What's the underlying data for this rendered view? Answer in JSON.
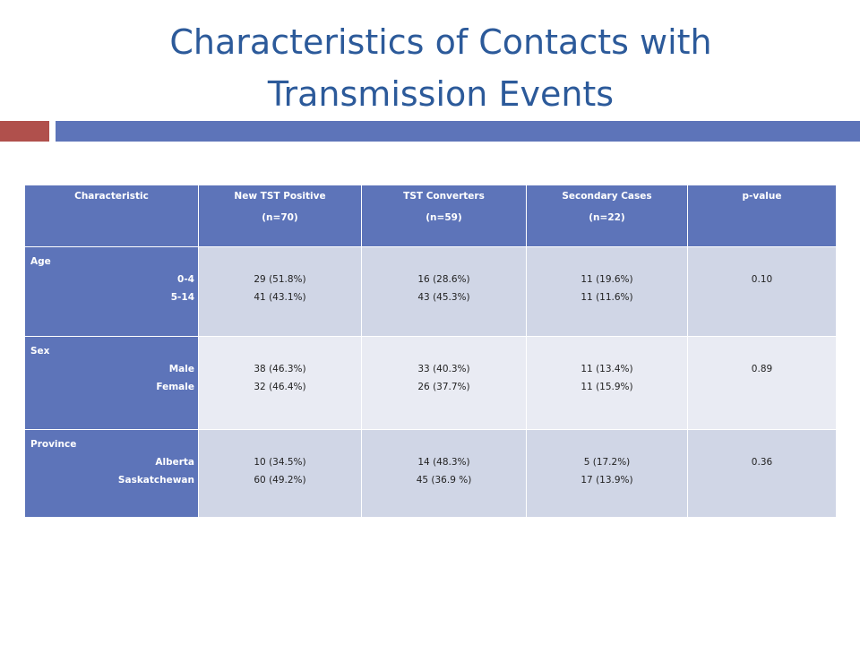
{
  "slide": {
    "title_line1": "Characteristics of Contacts with",
    "title_line2": "Transmission Events"
  },
  "table": {
    "headers": [
      {
        "line1": "Characteristic",
        "line2": ""
      },
      {
        "line1": "New TST Positive",
        "line2": "(n=70)"
      },
      {
        "line1": "TST Converters",
        "line2": "(n=59)"
      },
      {
        "line1": "Secondary Cases",
        "line2": "(n=22)"
      },
      {
        "line1": "p-value",
        "line2": ""
      }
    ],
    "rows": [
      {
        "group": "Age",
        "subs": [
          "0-4",
          "5-14",
          ""
        ],
        "new_tst": [
          "29 (51.8%)",
          "41 (43.1%)"
        ],
        "tst_conv": [
          "16 (28.6%)",
          "43 (45.3%)"
        ],
        "secondary": [
          "11 (19.6%)",
          "11 (11.6%)"
        ],
        "p_value": "0.10"
      },
      {
        "group": "Sex",
        "subs": [
          "Male",
          "Female",
          ""
        ],
        "new_tst": [
          "38 (46.3%)",
          "32 (46.4%)"
        ],
        "tst_conv": [
          "33 (40.3%)",
          "26 (37.7%)"
        ],
        "secondary": [
          "11 (13.4%)",
          "11 (15.9%)"
        ],
        "p_value": "0.89"
      },
      {
        "group": "Province",
        "subs": [
          "Alberta",
          "Saskatchewan",
          ""
        ],
        "new_tst": [
          "10 (34.5%)",
          "60 (49.2%)"
        ],
        "tst_conv": [
          "14 (48.3%)",
          "45 (36.9 %)"
        ],
        "secondary": [
          "5 (17.2%)",
          "17 (13.9%)"
        ],
        "p_value": "0.36"
      }
    ]
  }
}
